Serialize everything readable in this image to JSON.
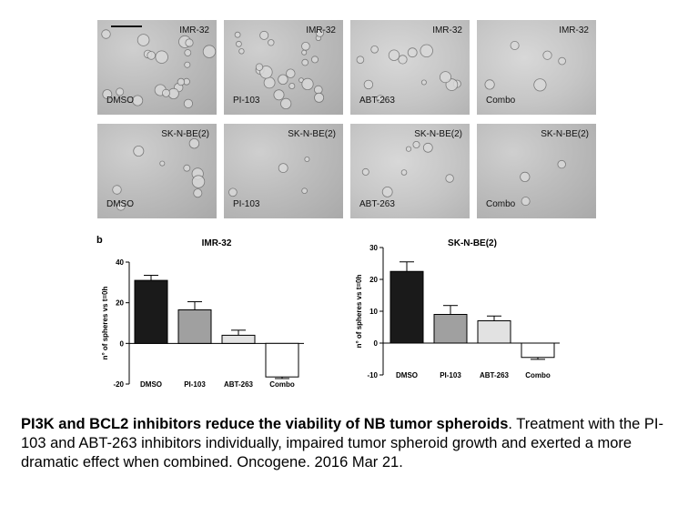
{
  "panel_a": {
    "rows": [
      {
        "tiles": [
          {
            "line": "IMR-32",
            "treatment": "DMSO"
          },
          {
            "line": "IMR-32",
            "treatment": "PI-103"
          },
          {
            "line": "IMR-32",
            "treatment": "ABT-263"
          },
          {
            "line": "IMR-32",
            "treatment": "Combo"
          }
        ]
      },
      {
        "tiles": [
          {
            "line": "SK-N-BE(2)",
            "treatment": "DMSO"
          },
          {
            "line": "SK-N-BE(2)",
            "treatment": "PI-103"
          },
          {
            "line": "SK-N-BE(2)",
            "treatment": "ABT-263"
          },
          {
            "line": "SK-N-BE(2)",
            "treatment": "Combo"
          }
        ]
      }
    ]
  },
  "panel_b_label": "b",
  "chart_data": [
    {
      "type": "bar",
      "title": "IMR-32",
      "ylabel": "n° of spheres vs t=0h",
      "categories": [
        "DMSO",
        "PI-103",
        "ABT-263",
        "Combo"
      ],
      "values": [
        31,
        16.5,
        4,
        -16.5
      ],
      "errors": [
        2.5,
        4,
        2.5,
        0.8
      ],
      "ylim": [
        -20,
        40
      ],
      "yticks": [
        -20,
        0,
        20,
        40
      ],
      "bar_colors": [
        "#1a1a1a",
        "#a0a0a0",
        "#e2e2e2",
        "#ffffff"
      ]
    },
    {
      "type": "bar",
      "title": "SK-N-BE(2)",
      "ylabel": "n° of spheres vs t=0h",
      "categories": [
        "DMSO",
        "PI-103",
        "ABT-263",
        "Combo"
      ],
      "values": [
        22.5,
        9,
        7,
        -4.5
      ],
      "errors": [
        3,
        2.8,
        1.5,
        0.6
      ],
      "ylim": [
        -10,
        30
      ],
      "yticks": [
        -10,
        0,
        10,
        20,
        30
      ],
      "bar_colors": [
        "#1a1a1a",
        "#a0a0a0",
        "#e2e2e2",
        "#ffffff"
      ]
    }
  ],
  "caption": {
    "title": "PI3K and BCL2 inhibitors reduce the viability of NB tumor spheroids",
    "title_end": ".",
    "body": " Treatment with the PI-103 and ABT-263 inhibitors individually, impaired tumor spheroid growth and exerted a more dramatic effect when combined. Oncogene. 2016 Mar 21."
  }
}
